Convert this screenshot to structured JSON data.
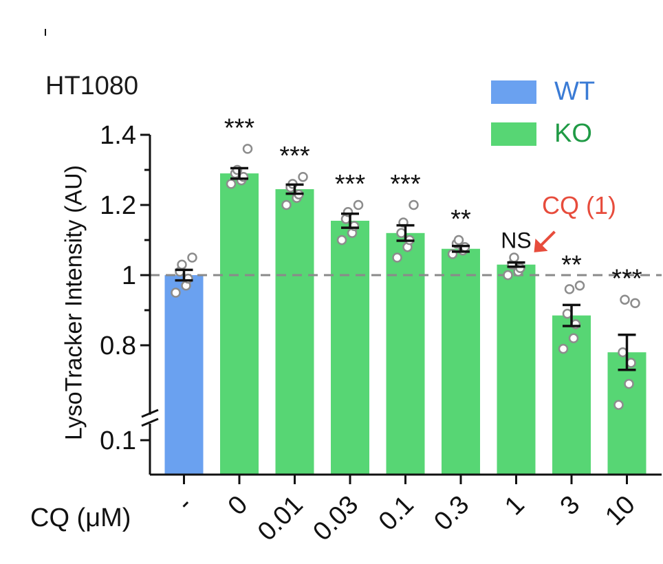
{
  "chart_data": {
    "type": "bar",
    "title": "HT1080",
    "ylabel": "LysoTracker Intensity (AU)",
    "xlabel": "CQ (μM)",
    "categories": [
      "-",
      "0",
      "0.01",
      "0.03",
      "0.1",
      "0.3",
      "1",
      "3",
      "10"
    ],
    "groups": [
      "WT",
      "KO",
      "KO",
      "KO",
      "KO",
      "KO",
      "KO",
      "KO",
      "KO"
    ],
    "values": [
      1.0,
      1.29,
      1.245,
      1.155,
      1.12,
      1.075,
      1.03,
      0.885,
      0.78
    ],
    "sem": [
      0.015,
      0.015,
      0.013,
      0.02,
      0.022,
      0.008,
      0.006,
      0.03,
      0.05
    ],
    "points": [
      [
        0.95,
        0.97,
        0.99,
        1.01,
        1.03,
        1.05
      ],
      [
        1.26,
        1.27,
        1.28,
        1.29,
        1.3,
        1.36
      ],
      [
        1.2,
        1.22,
        1.23,
        1.25,
        1.26,
        1.28
      ],
      [
        1.1,
        1.12,
        1.14,
        1.16,
        1.18,
        1.2
      ],
      [
        1.05,
        1.08,
        1.1,
        1.12,
        1.15,
        1.2
      ],
      [
        1.06,
        1.07,
        1.08,
        1.09,
        1.1
      ],
      [
        1.0,
        1.01,
        1.02,
        1.03,
        1.05
      ],
      [
        0.79,
        0.82,
        0.86,
        0.89,
        0.96,
        0.97
      ],
      [
        0.63,
        0.69,
        0.75,
        0.78,
        0.93,
        0.92
      ]
    ],
    "significance": [
      "",
      "***",
      "***",
      "***",
      "***",
      "**",
      "NS",
      "**",
      "***"
    ],
    "reference_line": 1.0,
    "yticks": [
      {
        "value": 1.4,
        "label": "1.4"
      },
      {
        "value": 1.2,
        "label": "1.2"
      },
      {
        "value": 1.0,
        "label": "1"
      },
      {
        "value": 0.8,
        "label": "0.8"
      },
      {
        "value": 0.1,
        "label": "0.1"
      }
    ],
    "axis_break": true,
    "legend": [
      {
        "name": "WT",
        "color": "#6aa1f0",
        "text_color": "#3a7bd5"
      },
      {
        "name": "KO",
        "color": "#57d674",
        "text_color": "#1f9a45"
      }
    ],
    "legend_position": "top-right",
    "annotation": {
      "text": "CQ (1)",
      "color": "#e74c3c"
    }
  }
}
